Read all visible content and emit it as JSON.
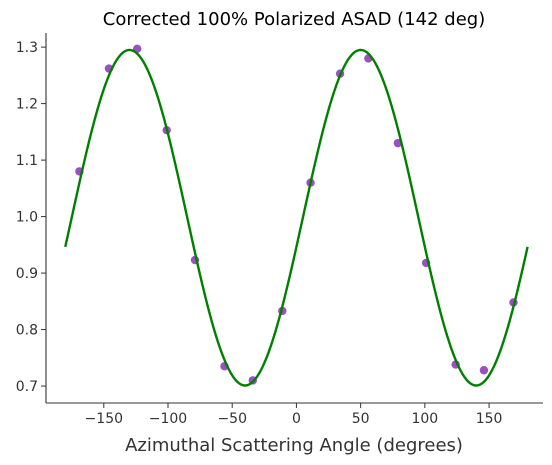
{
  "chart_data": {
    "type": "scatter",
    "title": "Corrected 100% Polarized ASAD (142 deg)",
    "xlabel": "Azimuthal Scattering Angle (degrees)",
    "ylabel": "",
    "xlim": [
      -195,
      192
    ],
    "ylim": [
      0.67,
      1.325
    ],
    "x_ticks": [
      -150,
      -100,
      -50,
      0,
      50,
      100,
      150
    ],
    "x_tick_labels": [
      "−150",
      "−100",
      "−50",
      "0",
      "50",
      "100",
      "150"
    ],
    "y_ticks": [
      0.7,
      0.8,
      0.9,
      1.0,
      1.1,
      1.2,
      1.3
    ],
    "y_tick_labels": [
      "0.7",
      "0.8",
      "0.9",
      "1.0",
      "1.1",
      "1.2",
      "1.3"
    ],
    "grid": false,
    "series": [
      {
        "kind": "points",
        "color": "#9b4fc0",
        "x": [
          -169,
          -146,
          -124,
          -101,
          -79,
          -56,
          -34,
          -11,
          11,
          34,
          56,
          79,
          101,
          124,
          146,
          169
        ],
        "y": [
          1.08,
          1.262,
          1.297,
          1.153,
          0.923,
          0.735,
          0.71,
          0.833,
          1.06,
          1.253,
          1.28,
          1.13,
          0.918,
          0.738,
          0.728,
          0.848
        ]
      },
      {
        "kind": "fit-curve",
        "color": "#008000",
        "model": "offset + amplitude*cos(2*(x - phase))",
        "offset": 0.998,
        "amplitude": 0.297,
        "phase_deg": 50,
        "x_range": [
          -180,
          180
        ]
      }
    ]
  }
}
